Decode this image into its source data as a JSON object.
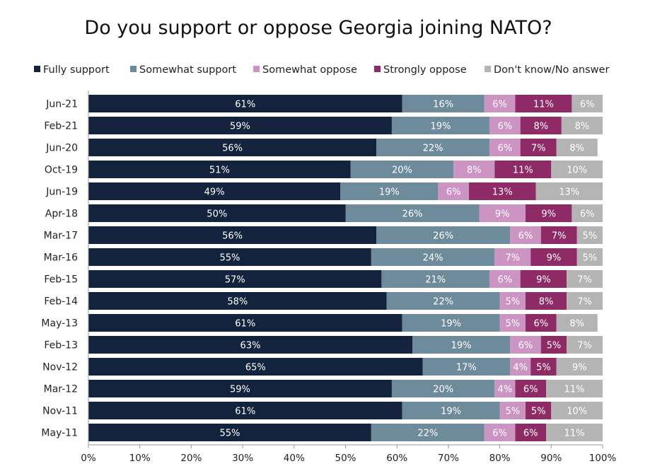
{
  "chart_data": {
    "type": "bar",
    "orientation": "horizontal",
    "stacked": true,
    "title": "Do you support or oppose Georgia joining NATO?",
    "xlabel": "",
    "ylabel": "",
    "xlim": [
      0,
      100
    ],
    "x_ticks": [
      "0%",
      "10%",
      "20%",
      "30%",
      "40%",
      "50%",
      "60%",
      "70%",
      "80%",
      "90%",
      "100%"
    ],
    "legend_position": "top",
    "grid": false,
    "categories": [
      "Jun-21",
      "Feb-21",
      "Jun-20",
      "Oct-19",
      "Jun-19",
      "Apr-18",
      "Mar-17",
      "Mar-16",
      "Feb-15",
      "Feb-14",
      "May-13",
      "Feb-13",
      "Nov-12",
      "Mar-12",
      "Nov-11",
      "May-11"
    ],
    "series": [
      {
        "name": "Fully support",
        "color": "#13233d",
        "label_color": "#ffffff",
        "values": [
          61,
          59,
          56,
          51,
          49,
          50,
          56,
          55,
          57,
          58,
          61,
          63,
          65,
          59,
          61,
          55
        ]
      },
      {
        "name": "Somewhat support",
        "color": "#6e8b9c",
        "label_color": "#ffffff",
        "values": [
          16,
          19,
          22,
          20,
          19,
          26,
          26,
          24,
          21,
          22,
          19,
          19,
          17,
          20,
          19,
          22
        ]
      },
      {
        "name": "Somewhat oppose",
        "color": "#cc94c2",
        "label_color": "#ffffff",
        "values": [
          6,
          6,
          6,
          8,
          6,
          9,
          6,
          7,
          6,
          5,
          5,
          6,
          4,
          4,
          5,
          6
        ]
      },
      {
        "name": "Strongly oppose",
        "color": "#8e2a66",
        "label_color": "#ffffff",
        "values": [
          11,
          8,
          7,
          11,
          13,
          9,
          7,
          9,
          9,
          8,
          6,
          5,
          5,
          6,
          5,
          6
        ]
      },
      {
        "name": "Don't know/No answer",
        "color": "#b4b4b4",
        "label_color": "#ffffff",
        "values": [
          6,
          8,
          8,
          10,
          13,
          6,
          5,
          5,
          7,
          7,
          8,
          7,
          9,
          11,
          10,
          11
        ]
      }
    ]
  }
}
